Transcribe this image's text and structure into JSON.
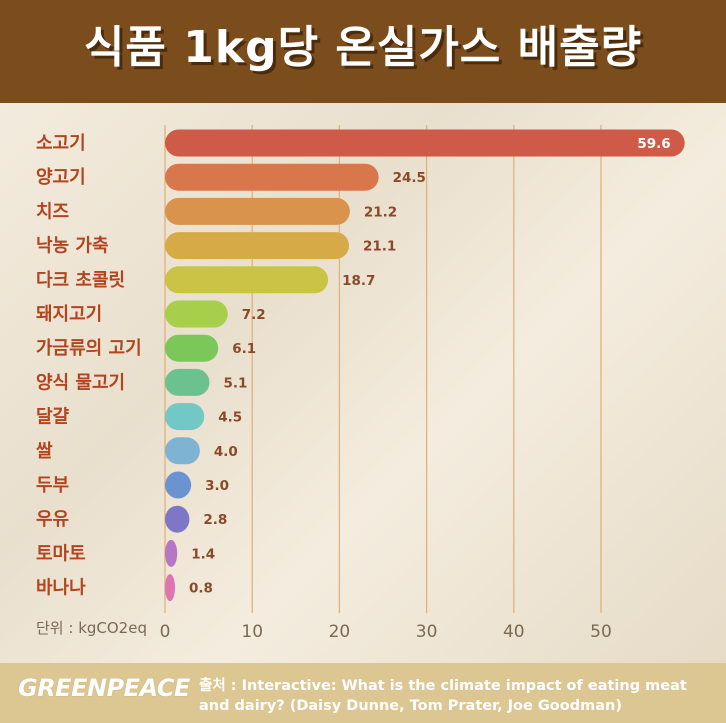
{
  "title": "식품 1kg당 온실가스 배출량",
  "footer": {
    "logo": "GREENPEACE",
    "source": "출처 : Interactive: What is the climate impact of eating meat and dairy? (Daisy Dunne, Tom Prater, Joe Goodman)"
  },
  "chart_data": {
    "type": "bar",
    "orientation": "horizontal",
    "title": "식품 1kg당 온실가스 배출량",
    "xlabel": "단위 : kgCO2eq",
    "ylabel": "",
    "xlim": [
      0,
      60
    ],
    "xticks": [
      0,
      10,
      20,
      30,
      40,
      50
    ],
    "grid": true,
    "categories": [
      "소고기",
      "양고기",
      "치즈",
      "낙농 가축",
      "다크 초콜릿",
      "돼지고기",
      "가금류의 고기",
      "양식 물고기",
      "달걀",
      "쌀",
      "두부",
      "우유",
      "토마토",
      "바나나"
    ],
    "values": [
      59.6,
      24.5,
      21.2,
      21.1,
      18.7,
      7.2,
      6.1,
      5.1,
      4.5,
      4.0,
      3.0,
      2.8,
      1.4,
      0.8
    ],
    "value_labels": [
      "59.6",
      "24.5",
      "21.2",
      "21.1",
      "18.7",
      "7.2",
      "6.1",
      "5.1",
      "4.5",
      "4.0",
      "3.0",
      "2.8",
      "1.4",
      "0.8"
    ],
    "colors": [
      "#d05a48",
      "#d9774c",
      "#d9934c",
      "#d6ab47",
      "#c9c346",
      "#a8cf4c",
      "#7cc75a",
      "#6cc28f",
      "#72c8c4",
      "#7fb3d3",
      "#6b93d0",
      "#7d77c6",
      "#b877c4",
      "#dd74b4"
    ],
    "label_color": "#b2451f",
    "grid_color": "#e0b27c",
    "inside_label_color": "#ffffff"
  }
}
